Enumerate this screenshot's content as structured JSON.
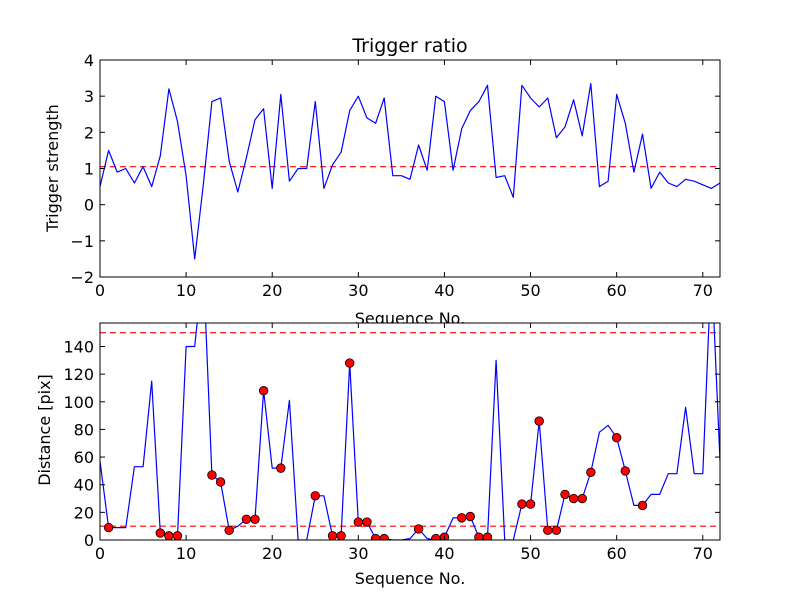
{
  "chart_data": [
    {
      "type": "line",
      "title": "Trigger ratio",
      "xlabel": "Sequence No.",
      "ylabel": "Trigger strength",
      "xlim": [
        0,
        72
      ],
      "ylim": [
        -2,
        4
      ],
      "xticks": [
        "0",
        "10",
        "20",
        "30",
        "40",
        "50",
        "60",
        "70"
      ],
      "yticks": [
        "−2",
        "−1",
        "0",
        "1",
        "2",
        "3",
        "4"
      ],
      "grid": false,
      "series": [
        {
          "color": "#0000ff",
          "x": [
            0,
            1,
            2,
            3,
            4,
            5,
            6,
            7,
            8,
            9,
            10,
            11,
            12,
            13,
            14,
            15,
            16,
            17,
            18,
            19,
            20,
            21,
            22,
            23,
            24,
            25,
            26,
            27,
            28,
            29,
            30,
            31,
            32,
            33,
            34,
            35,
            36,
            37,
            38,
            39,
            40,
            41,
            42,
            43,
            44,
            45,
            46,
            47,
            48,
            49,
            50,
            51,
            52,
            53,
            54,
            55,
            56,
            57,
            58,
            59,
            60,
            61,
            62,
            63,
            64,
            65,
            66,
            67,
            68,
            69,
            70,
            71,
            72
          ],
          "values": [
            0.5,
            1.5,
            0.9,
            1.0,
            0.6,
            1.05,
            0.5,
            1.35,
            3.2,
            2.3,
            0.8,
            -1.5,
            0.55,
            2.85,
            2.95,
            1.2,
            0.35,
            1.3,
            2.35,
            2.65,
            0.45,
            3.05,
            0.65,
            1.0,
            1.0,
            2.85,
            0.45,
            1.1,
            1.45,
            2.6,
            3.0,
            2.4,
            2.25,
            2.95,
            0.8,
            0.8,
            0.7,
            1.65,
            0.95,
            3.0,
            2.85,
            0.95,
            2.1,
            2.6,
            2.85,
            3.3,
            0.75,
            0.8,
            0.2,
            3.3,
            2.95,
            2.7,
            2.95,
            1.85,
            2.15,
            2.9,
            1.9,
            3.35,
            0.5,
            0.65,
            3.05,
            2.25,
            0.9,
            1.95,
            0.45,
            0.9,
            0.6,
            0.5,
            0.7,
            0.65,
            0.55,
            0.45,
            0.6
          ]
        }
      ],
      "reference_lines": [
        {
          "y": 1.05,
          "color": "#ff0000",
          "style": "dashed"
        }
      ]
    },
    {
      "type": "line",
      "title": "",
      "xlabel": "Sequence No.",
      "ylabel": "Distance [pix]",
      "xlim": [
        0,
        72
      ],
      "ylim": [
        0,
        157
      ],
      "xticks": [
        "0",
        "10",
        "20",
        "30",
        "40",
        "50",
        "60",
        "70"
      ],
      "yticks": [
        "0",
        "20",
        "40",
        "60",
        "80",
        "100",
        "120",
        "140"
      ],
      "grid": false,
      "series": [
        {
          "color": "#0000ff",
          "x": [
            0,
            1,
            2,
            3,
            4,
            5,
            6,
            7,
            8,
            9,
            10,
            11,
            12,
            13,
            14,
            15,
            16,
            17,
            18,
            19,
            20,
            21,
            22,
            23,
            24,
            25,
            26,
            27,
            28,
            29,
            30,
            31,
            32,
            33,
            34,
            35,
            36,
            37,
            38,
            39,
            40,
            41,
            42,
            43,
            44,
            45,
            46,
            47,
            48,
            49,
            50,
            51,
            52,
            53,
            54,
            55,
            56,
            57,
            58,
            59,
            60,
            61,
            62,
            63,
            64,
            65,
            66,
            67,
            68,
            69,
            70,
            71,
            72
          ],
          "values": [
            57,
            9,
            9,
            9,
            53,
            53,
            115,
            5,
            3,
            3,
            140,
            140,
            200,
            47,
            42,
            7,
            10,
            15,
            15,
            108,
            52,
            52,
            101,
            0,
            0,
            32,
            32,
            3,
            3,
            128,
            13,
            13,
            1,
            1,
            0,
            0,
            1,
            8,
            1,
            0,
            2,
            16,
            16,
            17,
            2,
            2,
            130,
            0,
            0,
            26,
            26,
            86,
            7,
            7,
            33,
            30,
            30,
            49,
            78,
            83,
            74,
            50,
            25,
            25,
            33,
            33,
            48,
            48,
            96,
            48,
            48,
            200,
            57
          ]
        },
        {
          "color": "#ff0000",
          "marker": "circle",
          "x": [
            1,
            7,
            8,
            9,
            13,
            14,
            15,
            17,
            18,
            19,
            21,
            25,
            27,
            28,
            29,
            30,
            31,
            32,
            33,
            37,
            39,
            40,
            42,
            43,
            44,
            45,
            49,
            50,
            51,
            52,
            53,
            54,
            55,
            56,
            57,
            60,
            61,
            63
          ],
          "values": [
            9,
            5,
            3,
            3,
            47,
            42,
            7,
            15,
            15,
            108,
            52,
            32,
            3,
            3,
            128,
            13,
            13,
            1,
            1,
            8,
            1,
            2,
            16,
            17,
            2,
            2,
            26,
            26,
            86,
            7,
            7,
            33,
            30,
            30,
            49,
            74,
            50,
            25
          ]
        }
      ],
      "reference_lines": [
        {
          "y": 150,
          "color": "#ff0000",
          "style": "dashed"
        },
        {
          "y": 10,
          "color": "#ff0000",
          "style": "dashed"
        }
      ]
    }
  ]
}
